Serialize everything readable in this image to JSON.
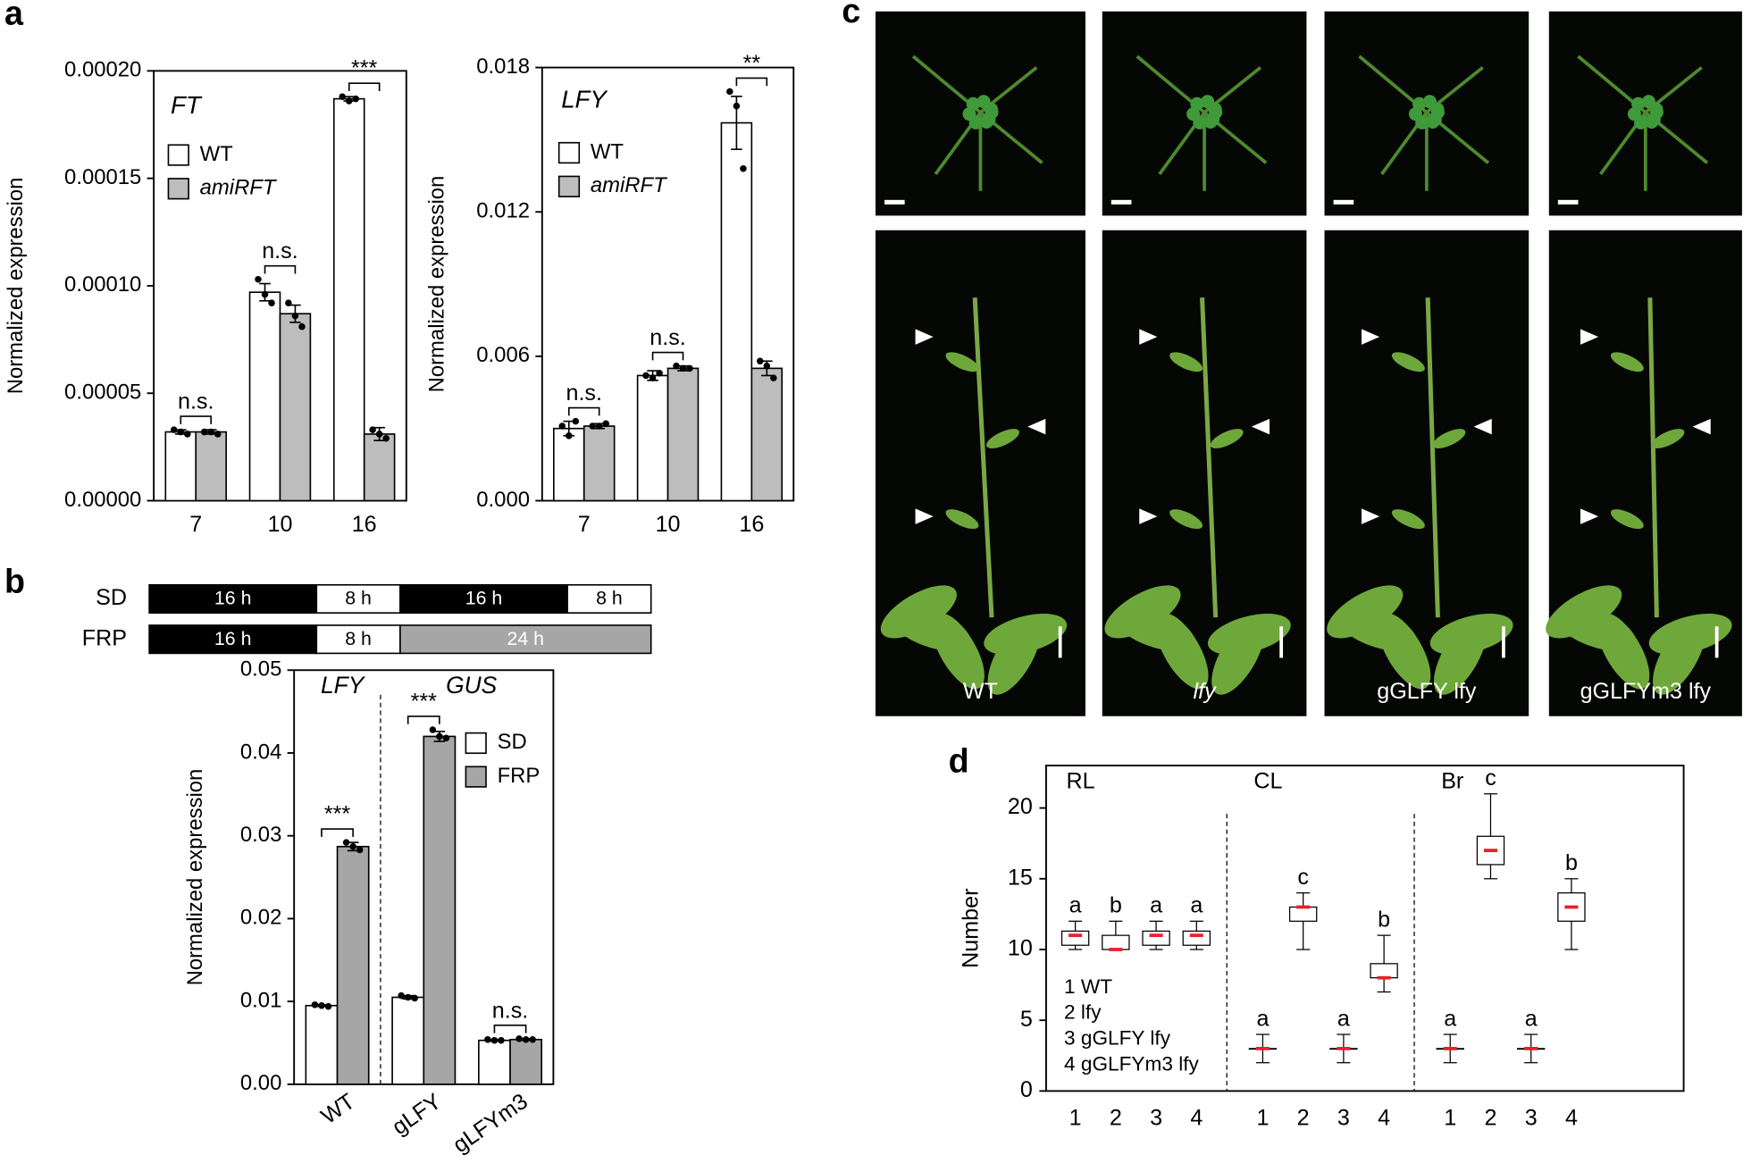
{
  "chart_data": [
    {
      "type": "bar",
      "panel": "a",
      "label": "FT",
      "y_label": "Normalized expression",
      "categories": [
        "7",
        "10",
        "16"
      ],
      "series": [
        {
          "name": "WT",
          "color": "#ffffff",
          "values": [
            3.2e-05,
            9.7e-05,
            0.000187
          ],
          "errors": [
            1e-06,
            4e-06,
            1e-06
          ],
          "points": [
            [
              3.3e-05,
              3.2e-05,
              3.1e-05
            ],
            [
              0.000103,
              9.6e-05,
              9.2e-05
            ],
            [
              0.000188,
              0.000186,
              0.000187
            ]
          ]
        },
        {
          "name": "amiRFT",
          "color": "#bdbdbd",
          "values": [
            3.2e-05,
            8.7e-05,
            3.1e-05
          ],
          "errors": [
            1e-06,
            4e-06,
            3e-06
          ],
          "points": [
            [
              3.2e-05,
              3.2e-05,
              3.1e-05
            ],
            [
              9.2e-05,
              8.6e-05,
              8.1e-05
            ],
            [
              3.3e-05,
              3.1e-05,
              2.9e-05
            ]
          ]
        }
      ],
      "annotations": [
        "n.s.",
        "n.s.",
        "***"
      ],
      "ylim": [
        0,
        0.0002
      ],
      "yticks": [
        {
          "value": 0,
          "label": "0.00000"
        },
        {
          "value": 5e-05,
          "label": "0.00005"
        },
        {
          "value": 0.0001,
          "label": "0.00010"
        },
        {
          "value": 0.00015,
          "label": "0.00015"
        },
        {
          "value": 0.0002,
          "label": "0.00020"
        }
      ]
    },
    {
      "type": "bar",
      "label": "LFY",
      "y_label": "Normalized expression",
      "categories": [
        "7",
        "10",
        "16"
      ],
      "series": [
        {
          "name": "WT",
          "color": "#ffffff",
          "values": [
            0.003,
            0.0052,
            0.0157
          ],
          "errors": [
            0.0003,
            0.0002,
            0.0011
          ],
          "points": [
            [
              0.0031,
              0.0027,
              0.0033
            ],
            [
              0.0052,
              0.0051,
              0.0053
            ],
            [
              0.017,
              0.0164,
              0.0138
            ]
          ]
        },
        {
          "name": "amiRFT",
          "color": "#bdbdbd",
          "values": [
            0.0031,
            0.0055,
            0.0055
          ],
          "errors": [
            0.0001,
            0.0001,
            0.0003
          ],
          "points": [
            [
              0.0031,
              0.0031,
              0.0032
            ],
            [
              0.0056,
              0.0055,
              0.0055
            ],
            [
              0.0058,
              0.0056,
              0.0051
            ]
          ]
        }
      ],
      "annotations": [
        "n.s.",
        "n.s.",
        "**"
      ],
      "ylim": [
        0,
        0.018
      ],
      "yticks": [
        {
          "value": 0,
          "label": "0.000"
        },
        {
          "value": 0.006,
          "label": "0.006"
        },
        {
          "value": 0.012,
          "label": "0.012"
        },
        {
          "value": 0.018,
          "label": "0.018"
        }
      ]
    },
    {
      "type": "bar",
      "panel": "b",
      "y_label": "Normalized expression",
      "schedule": [
        {
          "name": "SD",
          "segments": [
            {
              "value": 16,
              "label": "16 h",
              "color": "#000000"
            },
            {
              "value": 8,
              "label": "8 h",
              "color": "#ffffff"
            },
            {
              "value": 16,
              "label": "16 h",
              "color": "#000000"
            },
            {
              "value": 8,
              "label": "8 h",
              "color": "#ffffff"
            }
          ]
        },
        {
          "name": "FRP",
          "segments": [
            {
              "value": 16,
              "label": "16 h",
              "color": "#000000"
            },
            {
              "value": 8,
              "label": "8 h",
              "color": "#ffffff"
            },
            {
              "value": 24,
              "label": "24 h",
              "color": "#a6a6a6"
            }
          ]
        }
      ],
      "group_labels": [
        "LFY",
        "GUS"
      ],
      "categories": [
        "WT",
        "gLFY",
        "gLFYm3"
      ],
      "series": [
        {
          "name": "SD",
          "color": "#ffffff",
          "values": [
            0.0095,
            0.0105,
            0.0053
          ],
          "errors": [
            0.0001,
            0.0002,
            0.0001
          ],
          "points": [
            [
              0.0096,
              0.0095,
              0.0094
            ],
            [
              0.0107,
              0.0105,
              0.0104
            ],
            [
              0.0054,
              0.0053,
              0.0053
            ]
          ]
        },
        {
          "name": "FRP",
          "color": "#a6a6a6",
          "values": [
            0.0287,
            0.042,
            0.0054
          ],
          "errors": [
            0.0005,
            0.0006,
            0.0001
          ],
          "points": [
            [
              0.0292,
              0.0287,
              0.0283
            ],
            [
              0.0428,
              0.042,
              0.0418
            ],
            [
              0.0055,
              0.0054,
              0.0054
            ]
          ]
        }
      ],
      "annotations": [
        "***",
        "***",
        "n.s."
      ],
      "ylim": [
        0,
        0.05
      ],
      "yticks": [
        {
          "value": 0,
          "label": "0.00"
        },
        {
          "value": 0.01,
          "label": "0.01"
        },
        {
          "value": 0.02,
          "label": "0.02"
        },
        {
          "value": 0.03,
          "label": "0.03"
        },
        {
          "value": 0.04,
          "label": "0.04"
        },
        {
          "value": 0.05,
          "label": "0.05"
        }
      ]
    },
    {
      "type": "photo",
      "panel": "c",
      "labels": [
        "WT",
        "lfy",
        "gGLFY lfy",
        "gGLFYm3 lfy"
      ]
    },
    {
      "type": "box",
      "panel": "d",
      "y_label": "Number",
      "categories": [
        "1",
        "2",
        "3",
        "4"
      ],
      "legend": [
        "1 WT",
        "2 lfy",
        "3 gGLFY lfy",
        "4 gGLFYm3 lfy"
      ],
      "groups": [
        {
          "name": "RL",
          "boxes": [
            {
              "min": 10,
              "q1": 10.3,
              "median": 11,
              "q3": 11.3,
              "max": 12,
              "letter": "a"
            },
            {
              "min": 10,
              "q1": 10,
              "median": 10,
              "q3": 11,
              "max": 12,
              "letter": "b"
            },
            {
              "min": 10,
              "q1": 10.3,
              "median": 11,
              "q3": 11.3,
              "max": 12,
              "letter": "a"
            },
            {
              "min": 10,
              "q1": 10.3,
              "median": 11,
              "q3": 11.3,
              "max": 12,
              "letter": "a"
            }
          ]
        },
        {
          "name": "CL",
          "boxes": [
            {
              "min": 2,
              "q1": 3,
              "median": 3,
              "q3": 3,
              "max": 4,
              "letter": "a"
            },
            {
              "min": 10,
              "q1": 12,
              "median": 13,
              "q3": 13,
              "max": 14,
              "letter": "c"
            },
            {
              "min": 2,
              "q1": 3,
              "median": 3,
              "q3": 3,
              "max": 4,
              "letter": "a"
            },
            {
              "min": 7,
              "q1": 8,
              "median": 8,
              "q3": 9,
              "max": 11,
              "letter": "b"
            }
          ]
        },
        {
          "name": "Br",
          "boxes": [
            {
              "min": 2,
              "q1": 3,
              "median": 3,
              "q3": 3,
              "max": 4,
              "letter": "a"
            },
            {
              "min": 15,
              "q1": 16,
              "median": 17,
              "q3": 18,
              "max": 21,
              "letter": "c"
            },
            {
              "min": 2,
              "q1": 3,
              "median": 3,
              "q3": 3,
              "max": 4,
              "letter": "a"
            },
            {
              "min": 10,
              "q1": 12,
              "median": 13,
              "q3": 14,
              "max": 15,
              "letter": "b"
            }
          ]
        }
      ],
      "ylim": [
        0,
        23
      ],
      "yticks": [
        0,
        5,
        10,
        15,
        20
      ]
    }
  ]
}
